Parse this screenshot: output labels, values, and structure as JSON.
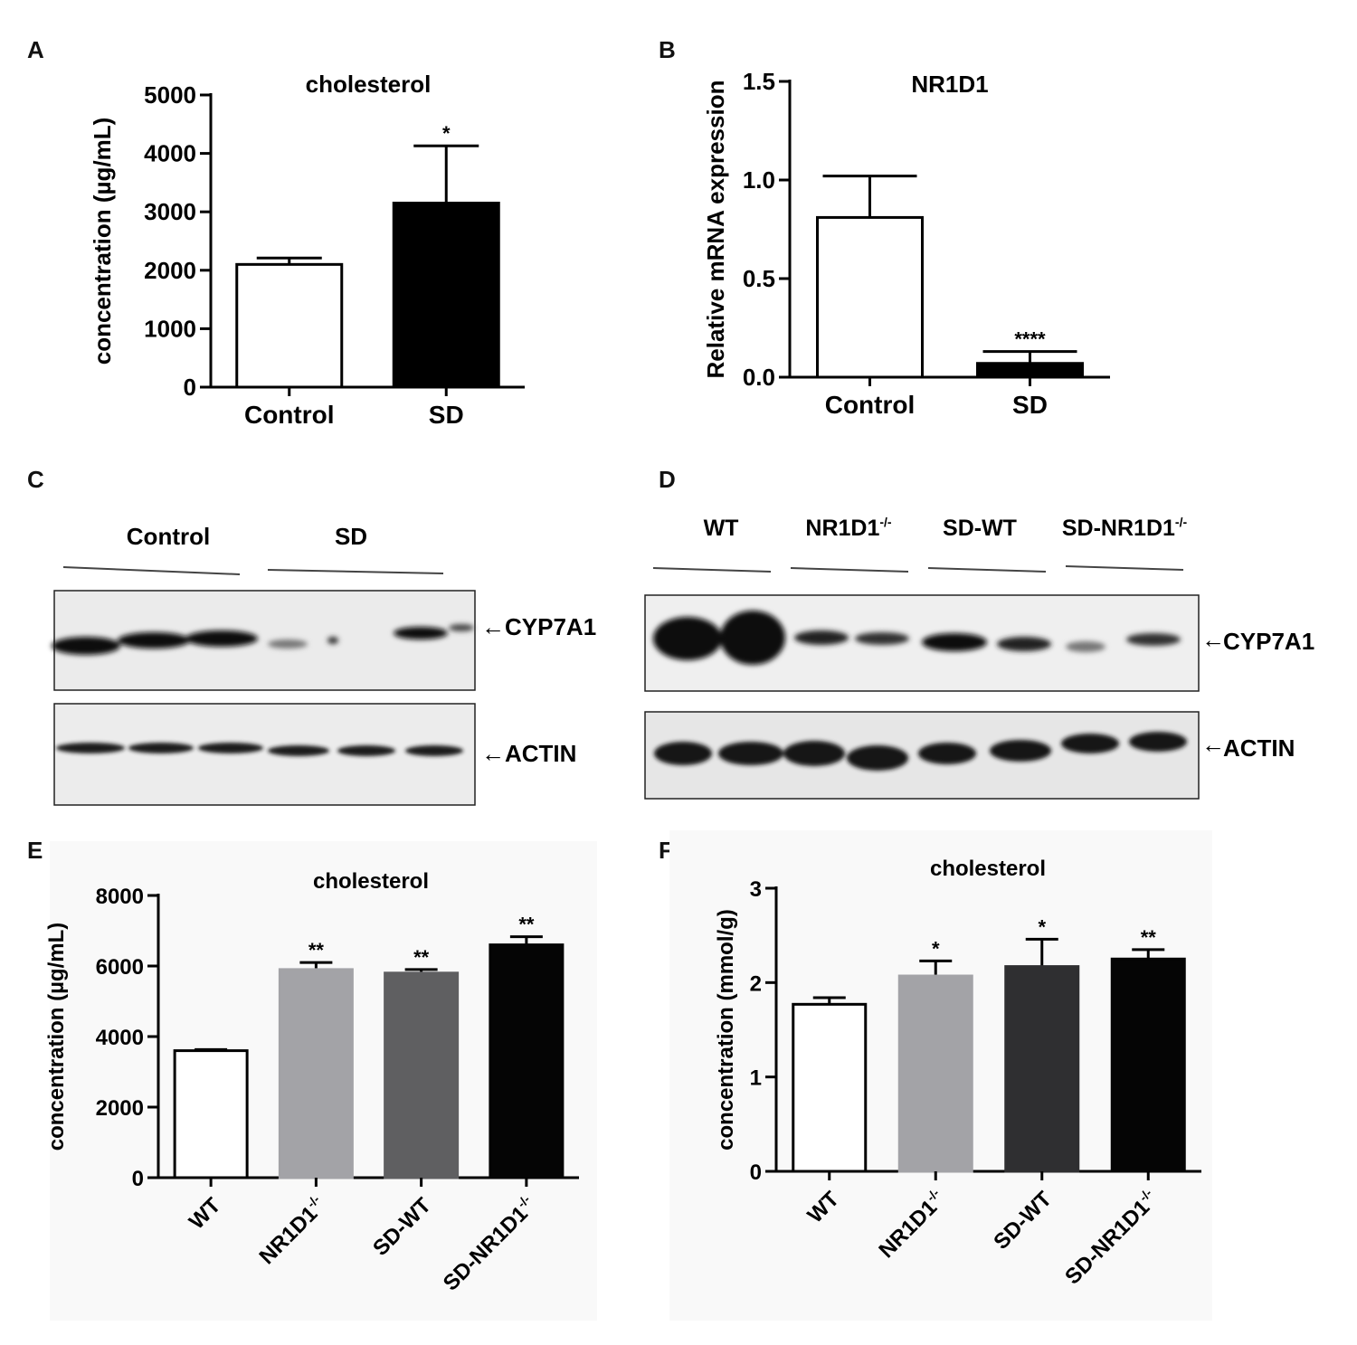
{
  "panels": {
    "A": {
      "letter": "A",
      "chart_data": {
        "type": "bar",
        "title": "cholesterol",
        "ylabel": "concentration (µg/mL)",
        "xlabel": "",
        "categories": [
          "Control",
          "SD"
        ],
        "values": [
          2100,
          3150
        ],
        "errors": [
          110,
          980
        ],
        "colors": [
          "#ffffff",
          "#000000"
        ],
        "significance": [
          "",
          "*"
        ],
        "ylim": [
          0,
          5000
        ],
        "yticks": [
          0,
          1000,
          2000,
          3000,
          4000,
          5000
        ],
        "yticklabels": [
          "0",
          "1000",
          "2000",
          "3000",
          "4000",
          "5000"
        ],
        "rotate_xlabels": false
      }
    },
    "B": {
      "letter": "B",
      "chart_data": {
        "type": "bar",
        "title": "NR1D1",
        "ylabel": "Relative mRNA expression",
        "xlabel": "",
        "categories": [
          "Control",
          "SD"
        ],
        "values": [
          0.81,
          0.07
        ],
        "errors": [
          0.21,
          0.06
        ],
        "colors": [
          "#ffffff",
          "#000000"
        ],
        "significance": [
          "",
          "****"
        ],
        "ylim": [
          0,
          1.5
        ],
        "yticks": [
          0,
          0.5,
          1.0,
          1.5
        ],
        "yticklabels": [
          "0.0",
          "0.5",
          "1.0",
          "1.5"
        ],
        "rotate_xlabels": false
      }
    },
    "C": {
      "letter": "C",
      "group_labels": [
        "Control",
        "SD"
      ],
      "blot_labels": [
        "CYP7A1",
        "ACTIN"
      ]
    },
    "D": {
      "letter": "D",
      "group_labels": [
        "WT",
        "NR1D1",
        "SD-WT",
        "SD-NR1D1"
      ],
      "group_superscripts": [
        "",
        "-/-",
        "",
        "-/-"
      ],
      "blot_labels": [
        "CYP7A1",
        "ACTIN"
      ]
    },
    "E": {
      "letter": "E",
      "chart_data": {
        "type": "bar",
        "title": "cholesterol",
        "ylabel": "concentration (µg/mL)",
        "xlabel": "",
        "categories": [
          "WT",
          "NR1D1-/-",
          "SD-WT",
          "SD-NR1D1-/-"
        ],
        "values": [
          3600,
          5900,
          5800,
          6600
        ],
        "errors": [
          30,
          200,
          100,
          230
        ],
        "colors": [
          "#ffffff",
          "#a3a3a7",
          "#5f5f61",
          "#050505"
        ],
        "significance": [
          "",
          "**",
          "**",
          "**"
        ],
        "ylim": [
          0,
          8000
        ],
        "yticks": [
          0,
          2000,
          4000,
          6000,
          8000
        ],
        "yticklabels": [
          "0",
          "2000",
          "4000",
          "6000",
          "8000"
        ],
        "rotate_xlabels": true
      }
    },
    "F": {
      "letter": "F",
      "chart_data": {
        "type": "bar",
        "title": "cholesterol",
        "ylabel": "concentration (mmol/g)",
        "xlabel": "",
        "categories": [
          "WT",
          "NR1D1-/-",
          "SD-WT",
          "SD-NR1D1-/-"
        ],
        "values": [
          1.77,
          2.07,
          2.17,
          2.25
        ],
        "errors": [
          0.07,
          0.16,
          0.29,
          0.1
        ],
        "colors": [
          "#ffffff",
          "#a3a3a7",
          "#2f2f31",
          "#050505"
        ],
        "significance": [
          "",
          "*",
          "*",
          "**"
        ],
        "ylim": [
          0,
          3
        ],
        "yticks": [
          0,
          1,
          2,
          3
        ],
        "yticklabels": [
          "0",
          "1",
          "2",
          "3"
        ],
        "rotate_xlabels": true
      }
    }
  }
}
